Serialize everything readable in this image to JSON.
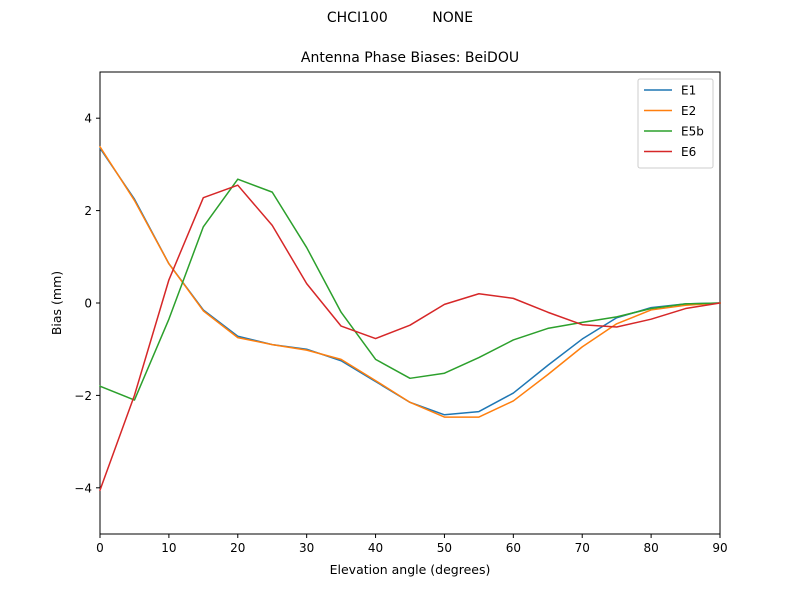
{
  "figure": {
    "suptitle": "CHCI100          NONE"
  },
  "chart_data": {
    "type": "line",
    "title": "Antenna Phase Biases: BeiDOU",
    "xlabel": "Elevation angle (degrees)",
    "ylabel": "Bias (mm)",
    "xlim": [
      0,
      90
    ],
    "ylim": [
      -5,
      5
    ],
    "xticks": [
      0,
      10,
      20,
      30,
      40,
      50,
      60,
      70,
      80,
      90
    ],
    "yticks": [
      -4,
      -2,
      0,
      2,
      4
    ],
    "ytick_labels": [
      "−4",
      "−2",
      "0",
      "2",
      "4"
    ],
    "grid": false,
    "legend_position": "top-right",
    "x": [
      0,
      5,
      10,
      15,
      20,
      25,
      30,
      35,
      40,
      45,
      50,
      55,
      60,
      65,
      70,
      75,
      80,
      85,
      90
    ],
    "series": [
      {
        "name": "E1",
        "color": "#1f77b4",
        "values": [
          3.35,
          2.25,
          0.85,
          -0.15,
          -0.72,
          -0.9,
          -1.0,
          -1.25,
          -1.7,
          -2.15,
          -2.42,
          -2.35,
          -1.95,
          -1.35,
          -0.78,
          -0.32,
          -0.1,
          -0.02,
          0.0
        ]
      },
      {
        "name": "E2",
        "color": "#ff7f0e",
        "values": [
          3.38,
          2.22,
          0.85,
          -0.17,
          -0.75,
          -0.9,
          -1.02,
          -1.22,
          -1.68,
          -2.15,
          -2.47,
          -2.47,
          -2.12,
          -1.55,
          -0.95,
          -0.45,
          -0.15,
          -0.05,
          0.0
        ]
      },
      {
        "name": "E5b",
        "color": "#2ca02c",
        "values": [
          -1.8,
          -2.1,
          -0.35,
          1.65,
          2.68,
          2.4,
          1.2,
          -0.2,
          -1.22,
          -1.63,
          -1.52,
          -1.18,
          -0.8,
          -0.55,
          -0.42,
          -0.3,
          -0.12,
          -0.02,
          0.0
        ]
      },
      {
        "name": "E6",
        "color": "#d62728",
        "values": [
          -4.05,
          -2.0,
          0.5,
          2.28,
          2.55,
          1.68,
          0.42,
          -0.5,
          -0.77,
          -0.48,
          -0.03,
          0.2,
          0.1,
          -0.2,
          -0.47,
          -0.52,
          -0.35,
          -0.12,
          0.0
        ]
      }
    ]
  }
}
